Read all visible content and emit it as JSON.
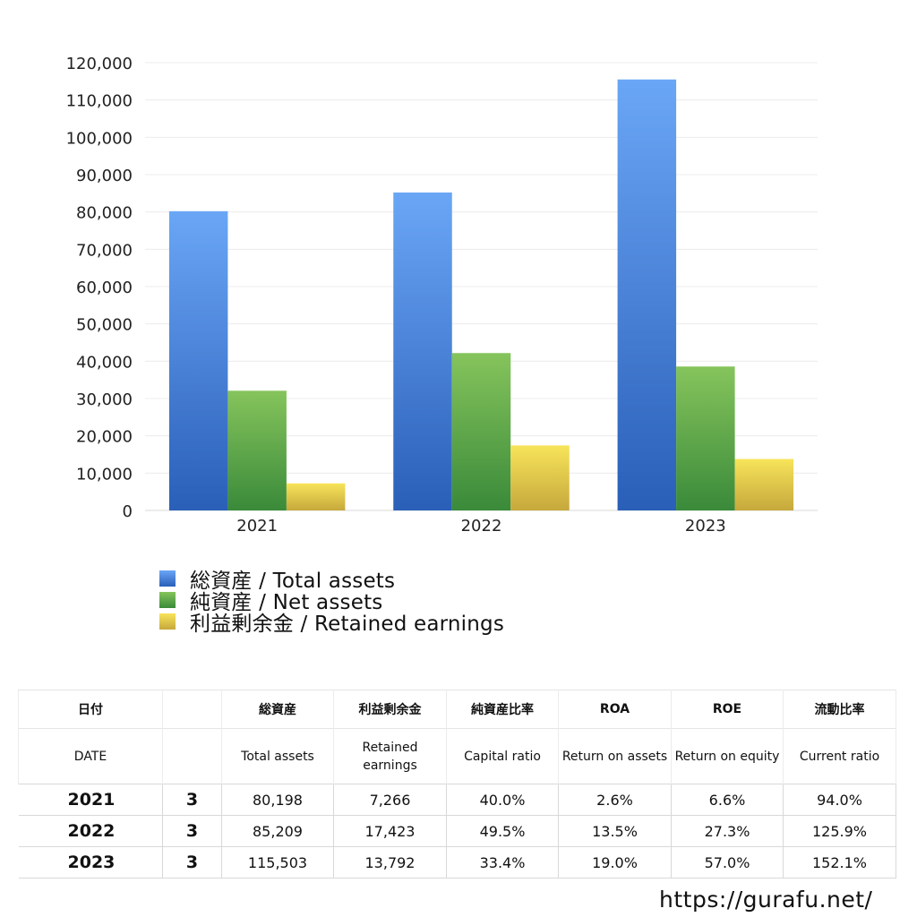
{
  "chart_data": {
    "type": "bar",
    "categories": [
      "2021",
      "2022",
      "2023"
    ],
    "series": [
      {
        "name": "総資産 / Total assets",
        "values": [
          80198,
          85209,
          115503
        ],
        "colors": [
          "#6aa6f6",
          "#2a5fb8"
        ]
      },
      {
        "name": "純資産 / Net assets",
        "values": [
          32079,
          42179,
          38578
        ],
        "colors": [
          "#86c45c",
          "#3a8a3a"
        ]
      },
      {
        "name": "利益剰余金 / Retained earnings",
        "values": [
          7266,
          17423,
          13792
        ],
        "colors": [
          "#f7e45a",
          "#c6a83c"
        ]
      }
    ],
    "yticks": [
      "0",
      "10,000",
      "20,000",
      "30,000",
      "40,000",
      "50,000",
      "60,000",
      "70,000",
      "80,000",
      "90,000",
      "100,000",
      "110,000",
      "120,000"
    ],
    "ylim": [
      0,
      120000
    ],
    "grid": true,
    "legend_position": "bottom-left",
    "title": "",
    "xlabel": "",
    "ylabel": ""
  },
  "table": {
    "header_jp": [
      "日付",
      "",
      "総資産",
      "利益剰余金",
      "純資産比率",
      "ROA",
      "ROE",
      "流動比率"
    ],
    "header_en": [
      "DATE",
      "",
      "Total assets",
      "Retained earnings",
      "Capital ratio",
      "Return on assets",
      "Return on equity",
      "Current ratio"
    ],
    "rows": [
      [
        "2021",
        "3",
        "80,198",
        "7,266",
        "40.0%",
        "2.6%",
        "6.6%",
        "94.0%"
      ],
      [
        "2022",
        "3",
        "85,209",
        "17,423",
        "49.5%",
        "13.5%",
        "27.3%",
        "125.9%"
      ],
      [
        "2023",
        "3",
        "115,503",
        "13,792",
        "33.4%",
        "19.0%",
        "57.0%",
        "152.1%"
      ]
    ]
  },
  "source": "https://gurafu.net/"
}
